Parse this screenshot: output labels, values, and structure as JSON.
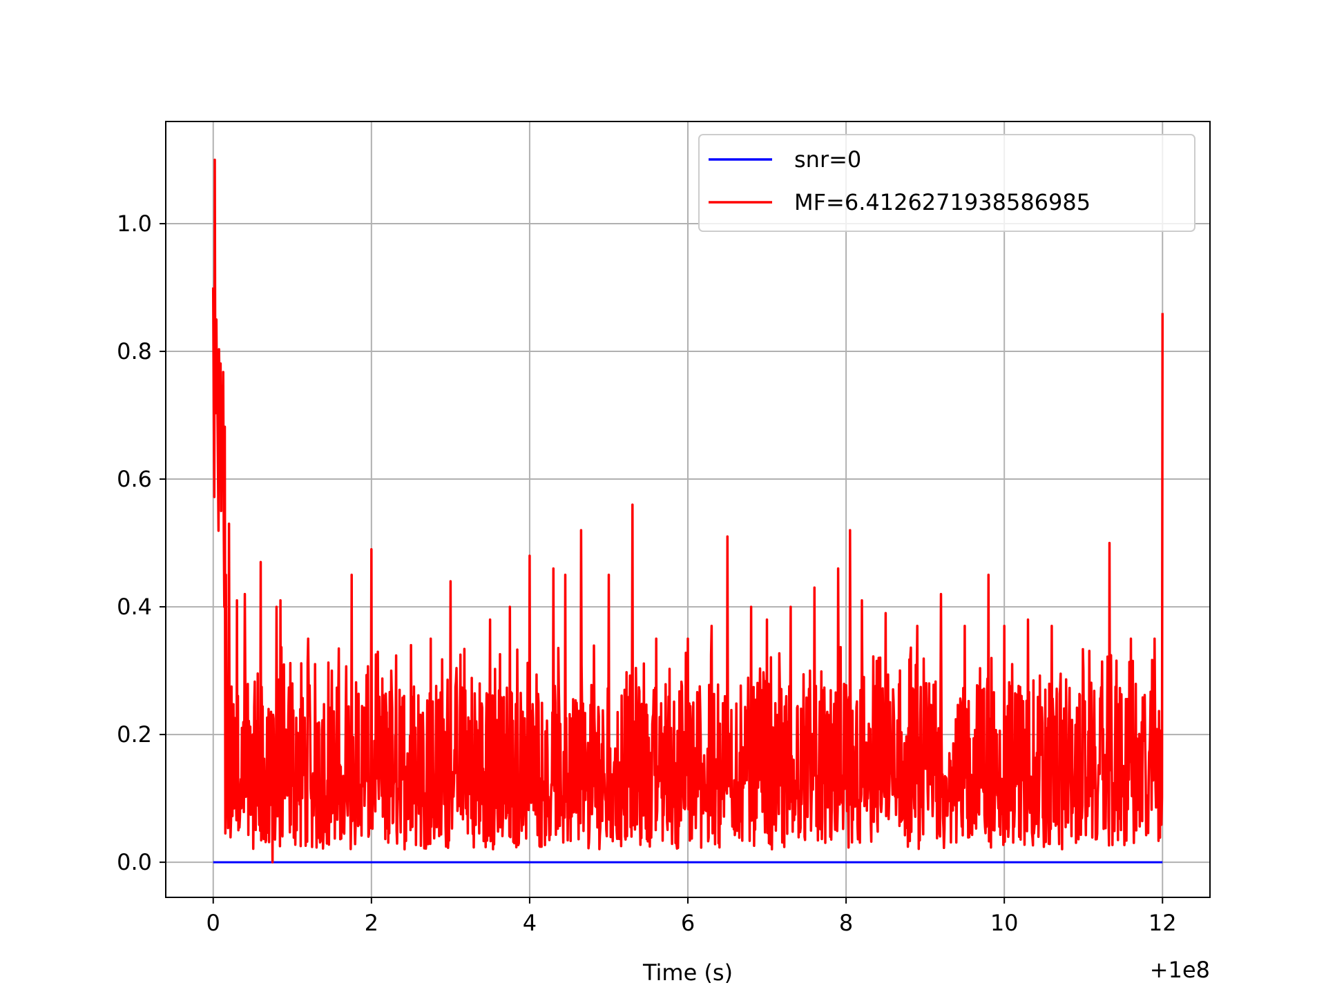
{
  "chart_data": {
    "type": "line",
    "title": "",
    "xlabel": "Time (s)",
    "ylabel": "",
    "x_offset_label": "+1e8",
    "xlim": [
      -0.6,
      12.6
    ],
    "ylim": [
      -0.055,
      1.16
    ],
    "grid": true,
    "legend_position": "upper-right",
    "x_ticks": [
      0,
      2,
      4,
      6,
      8,
      10,
      12
    ],
    "x_tick_labels": [
      "0",
      "2",
      "4",
      "6",
      "8",
      "10",
      "12"
    ],
    "y_ticks": [
      0.0,
      0.2,
      0.4,
      0.6,
      0.8,
      1.0
    ],
    "y_tick_labels": [
      "0.0",
      "0.2",
      "0.4",
      "0.6",
      "0.8",
      "1.0"
    ],
    "series": [
      {
        "name": "snr=0",
        "color": "#0000ff",
        "x": [
          0,
          12
        ],
        "y": [
          0.0,
          0.0
        ]
      },
      {
        "name": "MF=6.4126271938586985",
        "color": "#ff0000",
        "x": [
          0.0,
          0.02,
          0.04,
          0.06,
          0.08,
          0.1,
          0.12,
          0.14,
          0.16,
          0.2,
          0.25,
          0.3,
          0.35,
          0.4,
          0.5,
          0.6,
          0.65,
          0.7,
          0.75,
          0.8,
          0.85,
          0.9,
          1.0,
          1.2,
          1.5,
          1.75,
          2.0,
          2.25,
          2.5,
          2.75,
          3.0,
          3.5,
          3.75,
          4.0,
          4.3,
          4.45,
          4.65,
          5.0,
          5.3,
          5.6,
          6.0,
          6.3,
          6.5,
          6.8,
          7.0,
          7.3,
          7.6,
          7.9,
          8.05,
          8.2,
          8.5,
          8.9,
          9.2,
          9.5,
          9.8,
          10.0,
          10.3,
          10.6,
          11.0,
          11.33,
          11.6,
          11.9,
          11.98,
          12.0
        ],
        "y": [
          0.9,
          1.1,
          0.85,
          0.62,
          0.74,
          0.55,
          0.67,
          0.4,
          0.45,
          0.53,
          0.18,
          0.41,
          0.13,
          0.42,
          0.2,
          0.47,
          0.1,
          0.24,
          0.0,
          0.4,
          0.41,
          0.15,
          0.28,
          0.35,
          0.3,
          0.45,
          0.49,
          0.3,
          0.34,
          0.35,
          0.44,
          0.38,
          0.4,
          0.48,
          0.46,
          0.45,
          0.52,
          0.45,
          0.56,
          0.35,
          0.35,
          0.37,
          0.51,
          0.4,
          0.38,
          0.4,
          0.43,
          0.46,
          0.52,
          0.41,
          0.39,
          0.37,
          0.42,
          0.37,
          0.45,
          0.37,
          0.38,
          0.37,
          0.3,
          0.5,
          0.35,
          0.35,
          0.2,
          0.86
        ]
      }
    ]
  }
}
